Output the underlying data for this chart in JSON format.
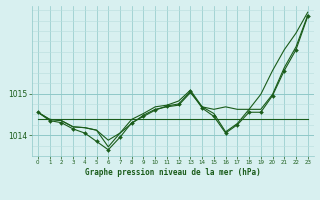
{
  "hours": [
    0,
    1,
    2,
    3,
    4,
    5,
    6,
    7,
    8,
    9,
    10,
    11,
    12,
    13,
    14,
    15,
    16,
    17,
    18,
    19,
    20,
    21,
    22,
    23
  ],
  "line_zigzag": [
    1014.55,
    1014.35,
    1014.3,
    1014.15,
    1014.05,
    1013.85,
    1013.65,
    1013.95,
    1014.3,
    1014.45,
    1014.6,
    1014.7,
    1014.75,
    1015.05,
    1014.65,
    1014.45,
    1014.05,
    1014.25,
    1014.55,
    1014.55,
    1014.95,
    1015.55,
    1016.05,
    1016.85
  ],
  "line_smooth1": [
    1014.55,
    1014.38,
    1014.35,
    1014.2,
    1014.18,
    1014.12,
    1013.88,
    1014.05,
    1014.28,
    1014.48,
    1014.62,
    1014.68,
    1014.72,
    1015.02,
    1014.68,
    1014.62,
    1014.68,
    1014.62,
    1014.62,
    1014.98,
    1015.55,
    1016.05,
    1016.45,
    1016.95
  ],
  "line_smooth2": [
    1014.55,
    1014.38,
    1014.35,
    1014.2,
    1014.18,
    1014.12,
    1013.72,
    1014.05,
    1014.38,
    1014.52,
    1014.68,
    1014.72,
    1014.82,
    1015.08,
    1014.68,
    1014.52,
    1014.08,
    1014.28,
    1014.62,
    1014.62,
    1014.98,
    1015.62,
    1016.12,
    1016.88
  ],
  "line_flat": [
    1014.38,
    1014.38,
    1014.38,
    1014.38,
    1014.38,
    1014.38,
    1014.38,
    1014.38,
    1014.38,
    1014.38,
    1014.38,
    1014.38,
    1014.38,
    1014.38,
    1014.38,
    1014.38,
    1014.38,
    1014.38,
    1014.38,
    1014.38,
    1014.38,
    1014.38,
    1014.38,
    1014.38
  ],
  "line_color": "#1a5c1a",
  "bg_color": "#d8f0f0",
  "grid_color_major": "#8fc8c8",
  "grid_color_minor": "#b8dede",
  "title": "Graphe pression niveau de la mer (hPa)",
  "ylim": [
    1013.55,
    1017.1
  ],
  "yticks": [
    1014,
    1015
  ],
  "xlim": [
    -0.5,
    23.5
  ]
}
